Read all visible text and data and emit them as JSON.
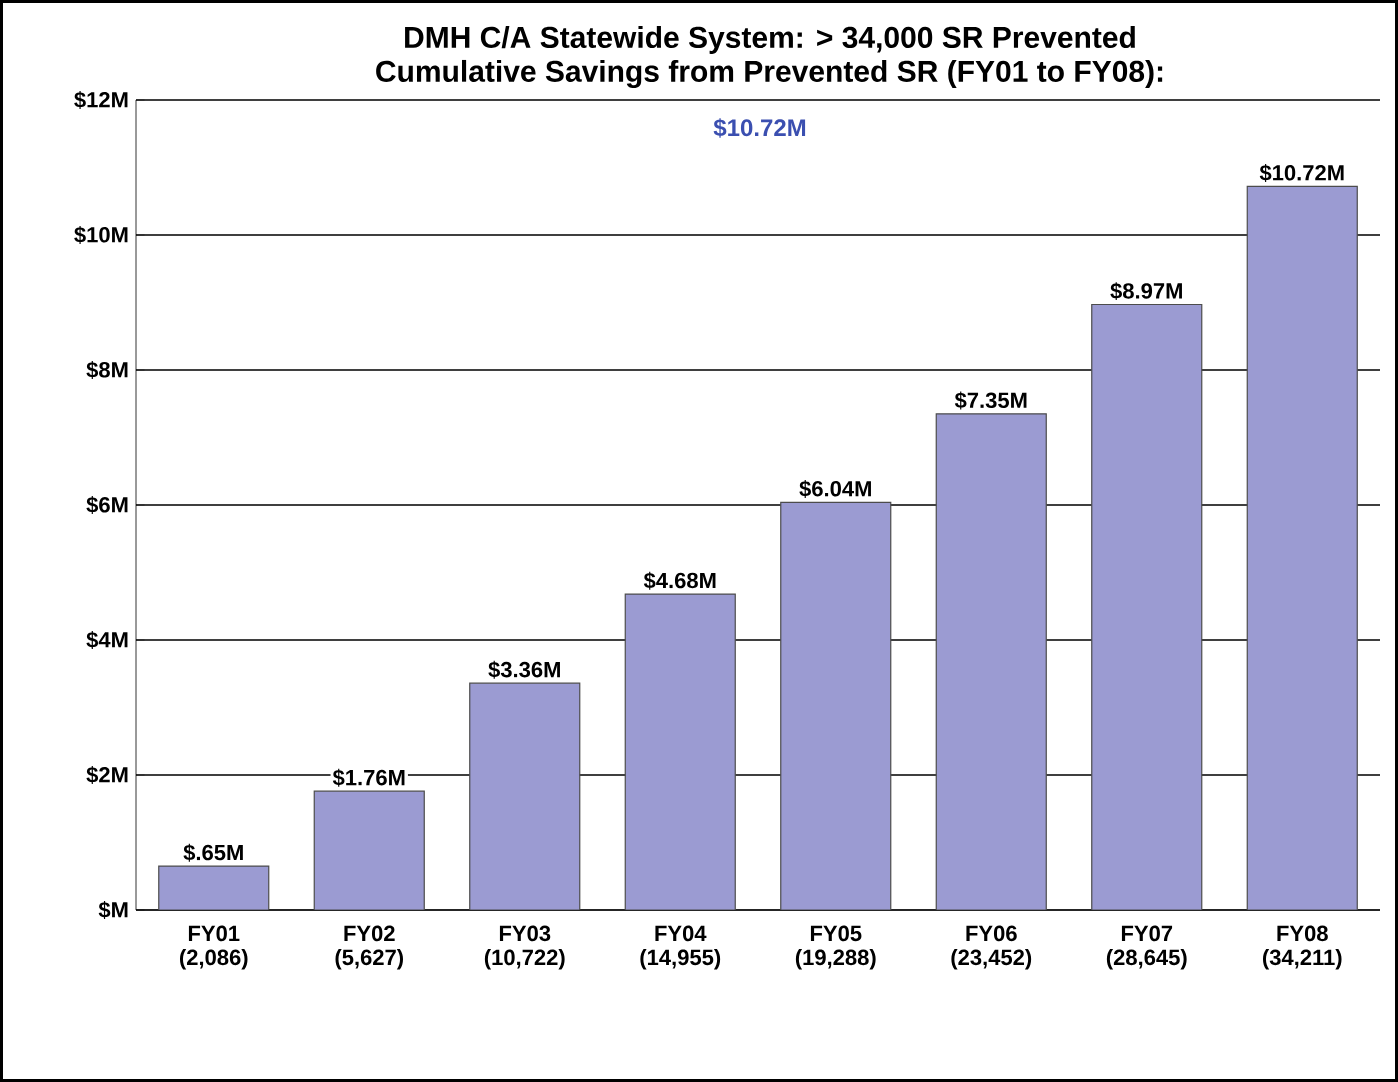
{
  "chart_data": {
    "type": "bar",
    "title": "DMH C/A Statewide System: > 34,000 SR Prevented",
    "subtitle": "Cumulative Savings from Prevented SR (FY01 to FY08):",
    "annotations": [
      "$10.72M"
    ],
    "categories": [
      "FY01 (2,086)",
      "FY02 (5,627)",
      "FY03 (10,722)",
      "FY04 (14,955)",
      "FY05 (19,288)",
      "FY06 (23,452)",
      "FY07 (28,645)",
      "FY08 (34,211)"
    ],
    "values": [
      0.65,
      1.76,
      3.36,
      4.68,
      6.04,
      7.35,
      8.97,
      10.72
    ],
    "value_labels": [
      "$.65M",
      "$1.76M",
      "$3.36M",
      "$4.68M",
      "$6.04M",
      "$7.35M",
      "$8.97M",
      "$10.72M"
    ],
    "color": "#9b9bd2",
    "ylim": [
      0,
      12
    ],
    "yticks": [
      {
        "value": 0,
        "label": "$M"
      },
      {
        "value": 2,
        "label": "$2M"
      },
      {
        "value": 4,
        "label": "$4M"
      },
      {
        "value": 6,
        "label": "$6M"
      },
      {
        "value": 8,
        "label": "$8M"
      },
      {
        "value": 10,
        "label": "$10M"
      },
      {
        "value": 12,
        "label": "$12M"
      }
    ],
    "grid": "y"
  }
}
